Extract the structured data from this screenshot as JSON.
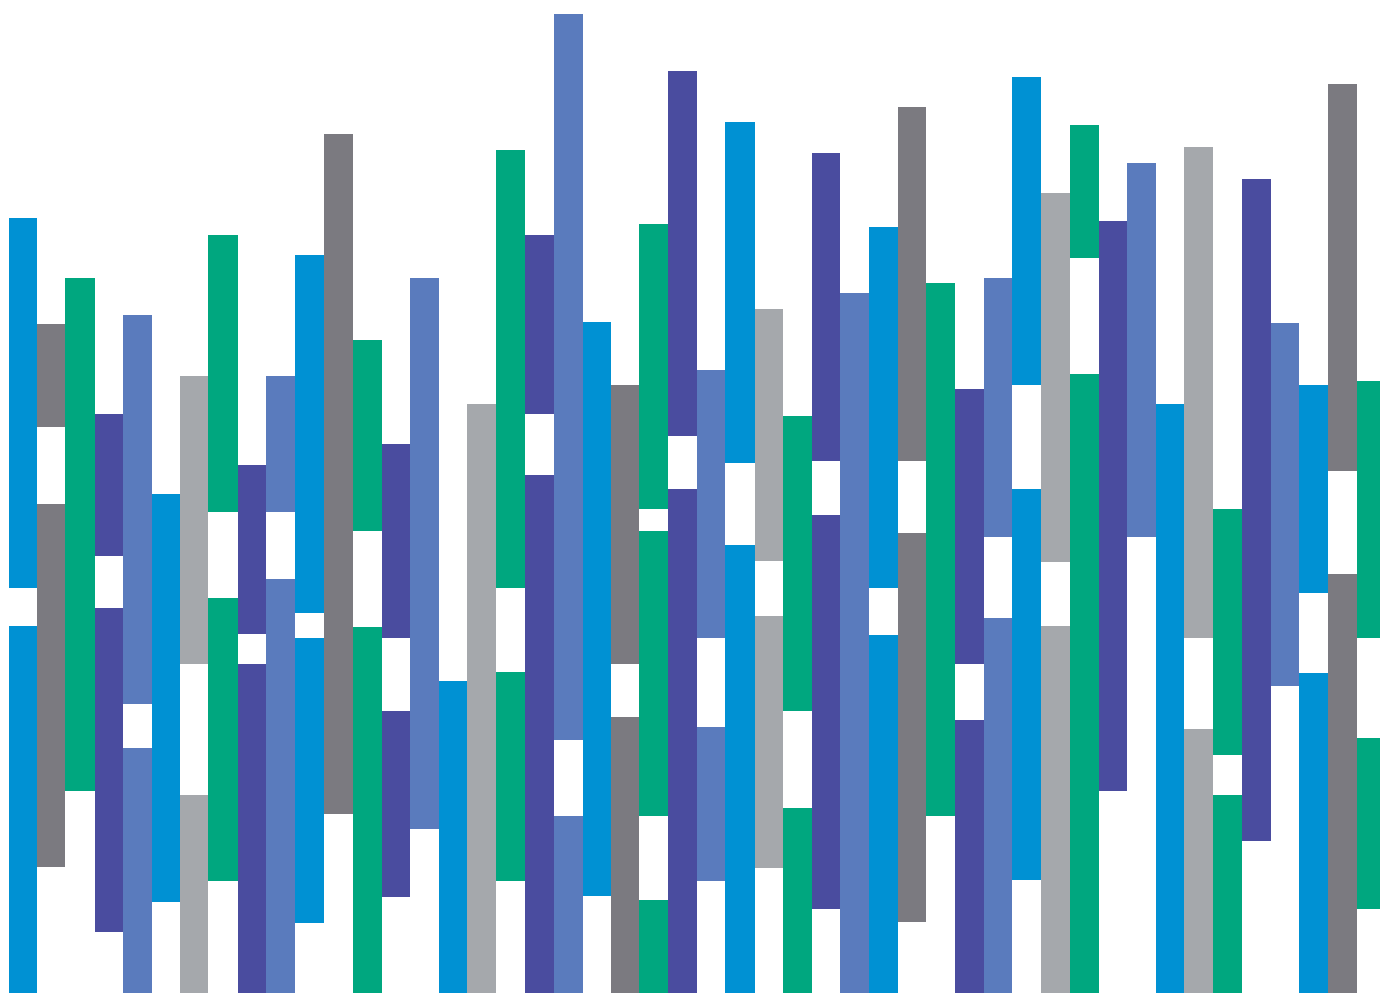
{
  "palette": {
    "blue": "#0091d3",
    "gray": "#7b7a80",
    "green": "#00a77f",
    "indigo": "#4a4c9f",
    "periwinkle": "#5a7bbd",
    "silver": "#a5a8ac",
    "background": "#ffffff"
  },
  "columns": [
    {
      "segments": [
        {
          "color": "blue"
        },
        {
          "color": "blue"
        }
      ]
    },
    {
      "segments": [
        {
          "color": "gray"
        },
        {
          "color": "gray"
        }
      ]
    },
    {
      "segments": [
        {
          "color": "green"
        }
      ]
    },
    {
      "segments": [
        {
          "color": "indigo"
        },
        {
          "color": "indigo"
        }
      ]
    },
    {
      "segments": [
        {
          "color": "periwinkle"
        },
        {
          "color": "periwinkle"
        }
      ]
    },
    {
      "segments": [
        {
          "color": "blue"
        }
      ]
    },
    {
      "segments": [
        {
          "color": "silver"
        },
        {
          "color": "silver"
        }
      ]
    },
    {
      "segments": [
        {
          "color": "green"
        },
        {
          "color": "green"
        }
      ]
    },
    {
      "segments": [
        {
          "color": "indigo"
        },
        {
          "color": "indigo"
        }
      ]
    },
    {
      "segments": [
        {
          "color": "periwinkle"
        },
        {
          "color": "periwinkle"
        }
      ]
    },
    {
      "segments": [
        {
          "color": "blue"
        },
        {
          "color": "blue"
        }
      ]
    },
    {
      "segments": [
        {
          "color": "gray"
        }
      ]
    },
    {
      "segments": [
        {
          "color": "green"
        },
        {
          "color": "green"
        }
      ]
    },
    {
      "segments": [
        {
          "color": "indigo"
        },
        {
          "color": "indigo"
        }
      ]
    },
    {
      "segments": [
        {
          "color": "periwinkle"
        }
      ]
    },
    {
      "segments": [
        {
          "color": "blue"
        }
      ]
    },
    {
      "segments": [
        {
          "color": "silver"
        }
      ]
    },
    {
      "segments": [
        {
          "color": "green"
        },
        {
          "color": "green"
        }
      ]
    },
    {
      "segments": [
        {
          "color": "indigo"
        },
        {
          "color": "indigo"
        }
      ]
    },
    {
      "segments": [
        {
          "color": "periwinkle"
        },
        {
          "color": "periwinkle"
        }
      ]
    },
    {
      "segments": [
        {
          "color": "blue"
        }
      ]
    },
    {
      "segments": [
        {
          "color": "gray"
        },
        {
          "color": "gray"
        }
      ]
    },
    {
      "segments": [
        {
          "color": "green"
        },
        {
          "color": "green"
        },
        {
          "color": "green"
        }
      ]
    },
    {
      "segments": [
        {
          "color": "indigo"
        },
        {
          "color": "indigo"
        }
      ]
    },
    {
      "segments": [
        {
          "color": "periwinkle"
        },
        {
          "color": "periwinkle"
        }
      ]
    },
    {
      "segments": [
        {
          "color": "blue"
        },
        {
          "color": "blue"
        }
      ]
    },
    {
      "segments": [
        {
          "color": "silver"
        },
        {
          "color": "silver"
        }
      ]
    },
    {
      "segments": [
        {
          "color": "green"
        },
        {
          "color": "green"
        }
      ]
    },
    {
      "segments": [
        {
          "color": "indigo"
        },
        {
          "color": "indigo"
        }
      ]
    },
    {
      "segments": [
        {
          "color": "periwinkle"
        }
      ]
    },
    {
      "segments": [
        {
          "color": "blue"
        },
        {
          "color": "blue"
        }
      ]
    },
    {
      "segments": [
        {
          "color": "gray"
        },
        {
          "color": "gray"
        }
      ]
    },
    {
      "segments": [
        {
          "color": "green"
        }
      ]
    },
    {
      "segments": [
        {
          "color": "indigo"
        },
        {
          "color": "indigo"
        }
      ]
    },
    {
      "segments": [
        {
          "color": "periwinkle"
        },
        {
          "color": "periwinkle"
        }
      ]
    },
    {
      "segments": [
        {
          "color": "blue"
        },
        {
          "color": "blue"
        }
      ]
    },
    {
      "segments": [
        {
          "color": "silver"
        },
        {
          "color": "silver"
        }
      ]
    },
    {
      "segments": [
        {
          "color": "green"
        },
        {
          "color": "green"
        }
      ]
    },
    {
      "segments": [
        {
          "color": "indigo"
        }
      ]
    },
    {
      "segments": [
        {
          "color": "periwinkle"
        }
      ]
    },
    {
      "segments": [
        {
          "color": "blue"
        }
      ]
    },
    {
      "segments": [
        {
          "color": "silver"
        },
        {
          "color": "silver"
        }
      ]
    },
    {
      "segments": [
        {
          "color": "green"
        },
        {
          "color": "green"
        }
      ]
    },
    {
      "segments": [
        {
          "color": "indigo"
        }
      ]
    },
    {
      "segments": [
        {
          "color": "periwinkle"
        }
      ]
    },
    {
      "segments": [
        {
          "color": "blue"
        },
        {
          "color": "blue"
        }
      ]
    },
    {
      "segments": [
        {
          "color": "gray"
        },
        {
          "color": "gray"
        }
      ]
    },
    {
      "segments": [
        {
          "color": "green"
        },
        {
          "color": "green"
        }
      ]
    }
  ]
}
